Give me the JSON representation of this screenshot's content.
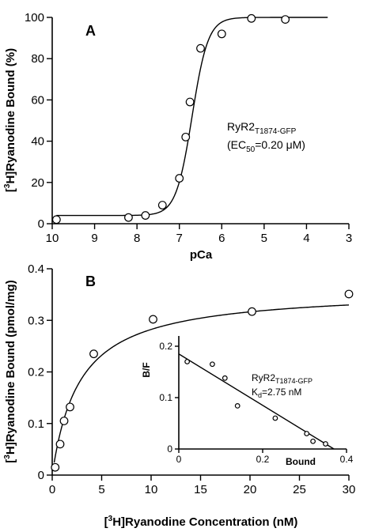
{
  "chart_data": [
    {
      "type": "scatter",
      "panel": "A",
      "xlabel": "pCa",
      "ylabel": "[3H]Ryanodine Bound (%)",
      "ylabel_parts": {
        "pre": "[",
        "sup": "3",
        "post": "H]Ryanodine Bound (%)"
      },
      "xlim": [
        10,
        3
      ],
      "ylim": [
        0,
        100
      ],
      "x_ticks": [
        10,
        9,
        8,
        7,
        6,
        5,
        4,
        3
      ],
      "y_ticks": [
        0,
        20,
        40,
        60,
        80,
        100
      ],
      "x": [
        9.9,
        8.2,
        7.8,
        7.4,
        7.0,
        6.85,
        6.75,
        6.5,
        6.0,
        5.3,
        4.5
      ],
      "y": [
        2,
        3,
        4,
        9,
        22,
        42,
        59,
        85,
        92,
        99.5,
        99
      ],
      "fit": {
        "bottom": 4,
        "top": 100,
        "pEC50": 6.7,
        "hill": 2.3
      },
      "annotation": {
        "name_main": "RyR2",
        "name_sub": "T1874-GFP",
        "ec_pre": "(EC",
        "ec_sub": "50",
        "ec_post": "=0.20 μM)"
      }
    },
    {
      "type": "scatter",
      "panel": "B",
      "xlabel": "[3H]Ryanodine Concentration (nM)",
      "xlabel_parts": {
        "pre": "[",
        "sup": "3",
        "post": "H]Ryanodine Concentration (nM)"
      },
      "ylabel": "[3H]Ryanodine Bound (pmol/mg)",
      "ylabel_parts": {
        "pre": "[",
        "sup": "3",
        "post": "H]Ryanodine Bound (pmol/mg)"
      },
      "xlim": [
        0,
        30
      ],
      "ylim": [
        0,
        0.4
      ],
      "x_ticks": [
        0,
        5,
        10,
        15,
        20,
        25,
        30
      ],
      "y_ticks": [
        0,
        0.1,
        0.2,
        0.3,
        0.4
      ],
      "x": [
        0.3,
        0.8,
        1.2,
        1.8,
        4.2,
        10.2,
        20.2,
        30.0
      ],
      "y": [
        0.015,
        0.06,
        0.105,
        0.132,
        0.235,
        0.302,
        0.317,
        0.351
      ],
      "fit": {
        "bmax": 0.36,
        "kd": 2.75
      },
      "inset": {
        "xlabel": "Bound",
        "ylabel": "B/F",
        "xlim": [
          0,
          0.4
        ],
        "ylim": [
          0,
          0.22
        ],
        "x_ticks": [
          0,
          0.2,
          0.4
        ],
        "y_ticks": [
          0,
          0.1,
          0.2
        ],
        "x": [
          0.02,
          0.08,
          0.11,
          0.14,
          0.23,
          0.305,
          0.32,
          0.35
        ],
        "y": [
          0.17,
          0.165,
          0.138,
          0.084,
          0.06,
          0.03,
          0.015,
          0.01
        ],
        "line": {
          "x0": 0.0,
          "y0": 0.185,
          "x1": 0.37,
          "y1": 0.0
        },
        "annotation": {
          "name_main": "RyR2",
          "name_sub": "T1874-GFP",
          "kd_pre": "K",
          "kd_sub": "d",
          "kd_post": "=2.75 nM"
        }
      }
    }
  ]
}
